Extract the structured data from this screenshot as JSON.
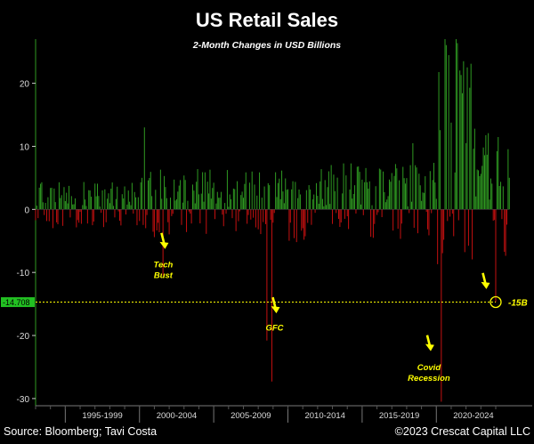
{
  "chart_data": {
    "type": "bar",
    "title": "US Retail Sales",
    "subtitle": "2-Month Changes in USD Billions",
    "xlabel": "",
    "ylabel": "",
    "ylim": [
      -31,
      27
    ],
    "grid": false,
    "y_ticks": [
      20,
      10,
      0,
      -10,
      -20,
      -30
    ],
    "x_categories": [
      "1995-1999",
      "2000-2004",
      "2005-2009",
      "2010-2014",
      "2015-2019",
      "2020-2024"
    ],
    "x_range": [
      1993.0,
      2024.9
    ],
    "last_value_label": "-14.708",
    "reference_value": -14.708,
    "colors": {
      "positive": "#2f9a22",
      "negative": "#c41010",
      "reference": "#ffff00",
      "label_bg": "#22c022"
    },
    "annotations": [
      {
        "id": "tech-bust",
        "text_lines": [
          "Tech",
          "Bust"
        ],
        "x": 2001.6,
        "y": -9.2,
        "arrow_y": -6.0
      },
      {
        "id": "gfc",
        "text_lines": [
          "GFC"
        ],
        "x": 2009.1,
        "y": -19.2,
        "arrow_y": -16.2
      },
      {
        "id": "covid",
        "text_lines": [
          "Covid",
          "Recession"
        ],
        "x": 2019.5,
        "y": -25.5,
        "arrow_y": -22.2
      },
      {
        "id": "latest",
        "text_lines": [
          "-15B"
        ],
        "x": 2023.8,
        "y": -14.7,
        "arrow_y": -11.5
      }
    ],
    "notable_series": [
      {
        "x": 2000.3,
        "value": 13.0
      },
      {
        "x": 2001.6,
        "value": -10.5
      },
      {
        "x": 2008.6,
        "value": -20.8
      },
      {
        "x": 2008.9,
        "value": -27.3
      },
      {
        "x": 2018.4,
        "value": 10.5
      },
      {
        "x": 2020.3,
        "value": -30.5
      },
      {
        "x": 2020.6,
        "value": 27.0
      },
      {
        "x": 2021.3,
        "value": 27.0
      },
      {
        "x": 2021.8,
        "value": 23.5
      },
      {
        "x": 2022.6,
        "value": 12.8
      },
      {
        "x": 2024.0,
        "value": -14.708
      }
    ]
  },
  "footer": {
    "source": "Source: Bloomberg; Tavi Costa",
    "copyright": "©2023 Crescat Capital LLC"
  }
}
